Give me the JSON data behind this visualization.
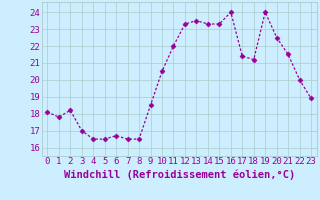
{
  "x": [
    0,
    1,
    2,
    3,
    4,
    5,
    6,
    7,
    8,
    9,
    10,
    11,
    12,
    13,
    14,
    15,
    16,
    17,
    18,
    19,
    20,
    21,
    22,
    23
  ],
  "y": [
    18.1,
    17.8,
    18.2,
    17.0,
    16.5,
    16.5,
    16.7,
    16.5,
    16.5,
    18.5,
    20.5,
    22.0,
    23.3,
    23.5,
    23.3,
    23.3,
    24.0,
    21.4,
    21.2,
    24.0,
    22.5,
    21.5,
    20.0,
    18.9
  ],
  "line_color": "#990099",
  "marker": "D",
  "markersize": 2.5,
  "linewidth": 0.9,
  "xlabel": "Windchill (Refroidissement éolien,°C)",
  "xlabel_fontsize": 7.5,
  "yticks": [
    16,
    17,
    18,
    19,
    20,
    21,
    22,
    23,
    24
  ],
  "xlim": [
    -0.5,
    23.5
  ],
  "ylim": [
    15.5,
    24.6
  ],
  "bg_color": "#cceeff",
  "grid_color": "#aacccc",
  "tick_color": "#990099",
  "tick_fontsize": 6.5,
  "xlabel_color": "#990099"
}
